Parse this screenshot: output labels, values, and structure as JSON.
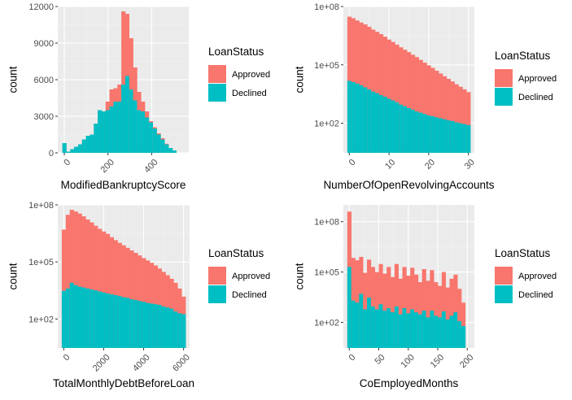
{
  "colors": {
    "approved": "#F8766D",
    "declined": "#00BFC4",
    "panel_bg": "#EBEBEB",
    "grid_major": "#FFFFFF",
    "text": "#000000",
    "tick_text": "#4D4D4D"
  },
  "chart_data": [
    {
      "type": "bar",
      "subtype": "stacked-histogram",
      "title": "",
      "xlabel": "ModifiedBankruptcyScore",
      "ylabel": "count",
      "yscale": "linear",
      "xlim": [
        -30,
        570
      ],
      "ylim": [
        0,
        12000
      ],
      "xticks": [
        0,
        200,
        400
      ],
      "xtick_labels": [
        "0",
        "200",
        "400"
      ],
      "yticks": [
        0,
        3000,
        6000,
        9000,
        12000
      ],
      "ytick_labels": [
        "0",
        "3000",
        "6000",
        "9000",
        "12000"
      ],
      "grid": true,
      "legend": {
        "title": "LoanStatus",
        "entries": [
          "Approved",
          "Declined"
        ],
        "position": "right"
      },
      "bin_width": 18,
      "x": [
        0,
        18,
        36,
        54,
        72,
        90,
        108,
        126,
        144,
        162,
        180,
        198,
        216,
        234,
        252,
        270,
        288,
        306,
        324,
        342,
        360,
        378,
        396,
        414,
        432,
        450,
        468,
        486,
        504,
        522
      ],
      "series": [
        {
          "name": "Declined",
          "values": [
            800,
            100,
            300,
            500,
            700,
            1100,
            1400,
            1500,
            2400,
            3500,
            3400,
            3500,
            3800,
            4200,
            4200,
            5600,
            6300,
            5200,
            4300,
            3500,
            3400,
            2900,
            2500,
            2000,
            1500,
            1100,
            700,
            400,
            200,
            0
          ]
        },
        {
          "name": "Approved",
          "values": [
            800,
            100,
            300,
            500,
            700,
            1100,
            1400,
            1500,
            2400,
            3500,
            3400,
            4200,
            5200,
            5300,
            5600,
            11600,
            11400,
            9400,
            7000,
            5000,
            4200,
            3400,
            2600,
            2100,
            1600,
            1200,
            750,
            400,
            200,
            0
          ]
        }
      ]
    },
    {
      "type": "bar",
      "subtype": "stacked-histogram",
      "title": "",
      "xlabel": "NumberOfOpenRevolvingAccounts",
      "ylabel": "count",
      "yscale": "log10",
      "xlim": [
        -1.5,
        31.5
      ],
      "ylim": [
        3,
        100000000
      ],
      "xticks": [
        0,
        10,
        20,
        30
      ],
      "xtick_labels": [
        "0",
        "10",
        "20",
        "30"
      ],
      "yticks": [
        100,
        100000,
        100000000
      ],
      "ytick_labels": [
        "1e+02",
        "1e+05",
        "1e+08"
      ],
      "grid": true,
      "legend": {
        "title": "LoanStatus",
        "entries": [
          "Approved",
          "Declined"
        ],
        "position": "right"
      },
      "bin_width": 1,
      "x": [
        0,
        1,
        2,
        3,
        4,
        5,
        6,
        7,
        8,
        9,
        10,
        11,
        12,
        13,
        14,
        15,
        16,
        17,
        18,
        19,
        20,
        21,
        22,
        23,
        24,
        25,
        26,
        27,
        28,
        29,
        30
      ],
      "series": [
        {
          "name": "Declined",
          "values": [
            15000,
            13000,
            11000,
            9000,
            7000,
            5500,
            4200,
            3500,
            2800,
            2300,
            1800,
            1500,
            1200,
            900,
            750,
            600,
            500,
            400,
            350,
            300,
            250,
            230,
            200,
            180,
            160,
            140,
            130,
            110,
            100,
            90,
            80
          ]
        },
        {
          "name": "Approved",
          "values": [
            30000000,
            25000000,
            19000000,
            15000000,
            12000000,
            9000000,
            6500000,
            5000000,
            3800000,
            2800000,
            2000000,
            1500000,
            1100000,
            800000,
            600000,
            450000,
            330000,
            250000,
            180000,
            130000,
            95000,
            70000,
            50000,
            36000,
            26000,
            19000,
            14000,
            10000,
            7500,
            5500,
            4000
          ]
        }
      ]
    },
    {
      "type": "bar",
      "subtype": "stacked-histogram",
      "title": "",
      "xlabel": "TotalMonthlyDebtBeforeLoan",
      "ylabel": "count",
      "yscale": "log10",
      "xlim": [
        -300,
        6300
      ],
      "ylim": [
        3,
        100000000
      ],
      "xticks": [
        0,
        2000,
        4000,
        6000
      ],
      "xtick_labels": [
        "0",
        "2000",
        "4000",
        "6000"
      ],
      "yticks": [
        100,
        100000,
        100000000
      ],
      "ytick_labels": [
        "1e+02",
        "1e+05",
        "1e+08"
      ],
      "grid": true,
      "legend": {
        "title": "LoanStatus",
        "entries": [
          "Approved",
          "Declined"
        ],
        "position": "right"
      },
      "bin_width": 200,
      "x": [
        0,
        200,
        400,
        600,
        800,
        1000,
        1200,
        1400,
        1600,
        1800,
        2000,
        2200,
        2400,
        2600,
        2800,
        3000,
        3200,
        3400,
        3600,
        3800,
        4000,
        4200,
        4400,
        4600,
        4800,
        5000,
        5200,
        5400,
        5600,
        5800,
        6000
      ],
      "series": [
        {
          "name": "Declined",
          "values": [
            3000,
            4000,
            8000,
            6000,
            5000,
            4500,
            4000,
            3600,
            3200,
            2800,
            2500,
            2200,
            2000,
            1800,
            1600,
            1400,
            1300,
            1100,
            1000,
            900,
            800,
            700,
            650,
            600,
            550,
            450,
            400,
            350,
            250,
            200,
            180
          ]
        },
        {
          "name": "Approved",
          "values": [
            5000000,
            30000000,
            55000000,
            45000000,
            35000000,
            25000000,
            17000000,
            12000000,
            8000000,
            5500000,
            4000000,
            3000000,
            2000000,
            1400000,
            1000000,
            750000,
            550000,
            400000,
            300000,
            220000,
            160000,
            120000,
            90000,
            65000,
            45000,
            30000,
            20000,
            13000,
            8000,
            4000,
            1500
          ]
        }
      ]
    },
    {
      "type": "bar",
      "subtype": "stacked-histogram",
      "title": "",
      "xlabel": "CoEmployedMonths",
      "ylabel": "count",
      "yscale": "log10",
      "xlim": [
        -10,
        212
      ],
      "ylim": [
        3,
        1000000000
      ],
      "xticks": [
        0,
        50,
        100,
        150,
        200
      ],
      "xtick_labels": [
        "0",
        "50",
        "100",
        "150",
        "200"
      ],
      "yticks": [
        100,
        100000,
        100000000
      ],
      "ytick_labels": [
        "1e+02",
        "1e+05",
        "1e+08"
      ],
      "grid": true,
      "legend": {
        "title": "LoanStatus",
        "entries": [
          "Approved",
          "Declined"
        ],
        "position": "right"
      },
      "bin_width": 6.67,
      "x": [
        0,
        6.67,
        13.33,
        20,
        26.67,
        33.33,
        40,
        46.67,
        53.33,
        60,
        66.67,
        73.33,
        80,
        86.67,
        93.33,
        100,
        106.67,
        113.33,
        120,
        126.67,
        133.33,
        140,
        146.67,
        153.33,
        160,
        166.67,
        173.33,
        180,
        186.67,
        193.33
      ],
      "series": [
        {
          "name": "Declined",
          "values": [
            200000,
            2000,
            1500,
            5000,
            600,
            3000,
            900,
            600,
            1200,
            500,
            700,
            400,
            900,
            300,
            700,
            350,
            600,
            400,
            300,
            500,
            200,
            500,
            250,
            200,
            450,
            150,
            250,
            400,
            120,
            60
          ]
        },
        {
          "name": "Approved",
          "values": [
            400000000,
            700000,
            500000,
            800000,
            90000,
            550000,
            200000,
            100000,
            300000,
            80000,
            200000,
            50000,
            300000,
            40000,
            200000,
            60000,
            180000,
            70000,
            25000,
            150000,
            30000,
            130000,
            25000,
            15000,
            100000,
            12000,
            40000,
            70000,
            10000,
            1500
          ]
        }
      ]
    }
  ]
}
